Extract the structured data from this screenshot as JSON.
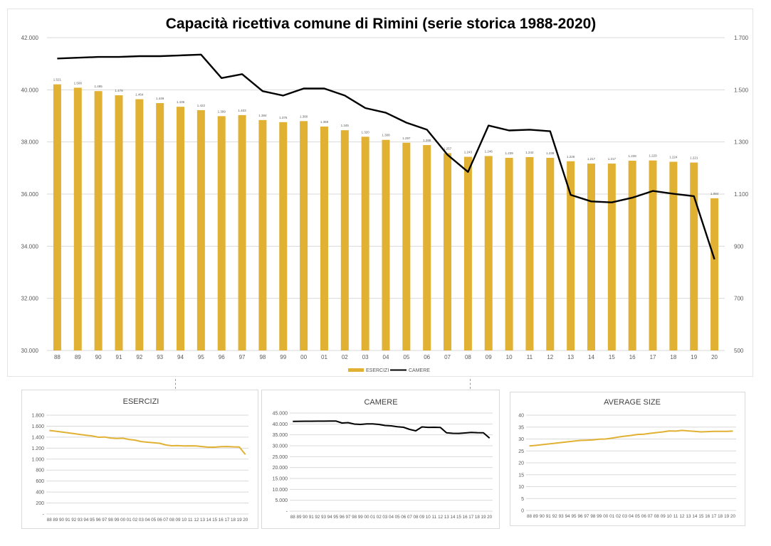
{
  "chart_data": [
    {
      "type": "bar+line",
      "title": "Capacità ricettiva comune di Rimini (serie storica 1988-2020)",
      "categories": [
        "88",
        "89",
        "90",
        "91",
        "92",
        "93",
        "94",
        "95",
        "96",
        "97",
        "98",
        "99",
        "00",
        "01",
        "02",
        "03",
        "04",
        "05",
        "06",
        "07",
        "08",
        "09",
        "10",
        "11",
        "12",
        "13",
        "14",
        "15",
        "16",
        "17",
        "18",
        "19",
        "20"
      ],
      "series": [
        {
          "name": "ESERCIZI",
          "type": "bar",
          "axis": "right",
          "color": "#E1B133",
          "values": [
            1521,
            1508,
            1495,
            1479,
            1464,
            1449,
            1435,
            1422,
            1399,
            1403,
            1384,
            1376,
            1380,
            1359,
            1345,
            1320,
            1308,
            1297,
            1288,
            1257,
            1243,
            1246,
            1239,
            1242,
            1239,
            1226,
            1217,
            1217,
            1228,
            1229,
            1224,
            1221,
            1084
          ],
          "labels": [
            "1.521",
            "1.508",
            "1.495",
            "1.479",
            "1.464",
            "1.449",
            "1.435",
            "1.422",
            "1.399",
            "1.403",
            "1.384",
            "1.376",
            "1.380",
            "1.359",
            "1.345",
            "1.320",
            "1.308",
            "1.297",
            "1.288",
            "1.257",
            "1.243",
            "1.246",
            "1.239",
            "1.242",
            "1.239",
            "1.226",
            "1.217",
            "1.217",
            "1.228",
            "1.229",
            "1.224",
            "1.221",
            "1.084"
          ]
        },
        {
          "name": "CAMERE",
          "type": "line",
          "axis": "left",
          "color": "#000000",
          "values": [
            41200,
            41230,
            41260,
            41260,
            41290,
            41290,
            41320,
            41350,
            40450,
            40600,
            39950,
            39780,
            40050,
            40050,
            39780,
            39300,
            39120,
            38740,
            38470,
            37510,
            36850,
            38630,
            38440,
            38470,
            38410,
            35970,
            35720,
            35680,
            35860,
            36120,
            36010,
            35920,
            33500
          ]
        }
      ],
      "ylim_left": [
        30000,
        42000
      ],
      "yticks_left": [
        "30.000",
        "32.000",
        "34.000",
        "36.000",
        "38.000",
        "40.000",
        "42.000"
      ],
      "ylim_right": [
        500,
        1700
      ],
      "yticks_right": [
        "500",
        "700",
        "900",
        "1.100",
        "1.300",
        "1.500",
        "1.700"
      ],
      "grid": true,
      "legend_position": "bottom"
    },
    {
      "type": "line",
      "title": "ESERCIZI",
      "color": "#E1B133",
      "categories": [
        "88",
        "89",
        "90",
        "91",
        "92",
        "93",
        "94",
        "95",
        "96",
        "97",
        "98",
        "99",
        "00",
        "01",
        "02",
        "03",
        "04",
        "05",
        "06",
        "07",
        "08",
        "09",
        "10",
        "11",
        "12",
        "13",
        "14",
        "15",
        "16",
        "17",
        "18",
        "19",
        "20"
      ],
      "values": [
        1521,
        1508,
        1495,
        1479,
        1464,
        1449,
        1435,
        1422,
        1399,
        1403,
        1384,
        1376,
        1380,
        1359,
        1345,
        1320,
        1308,
        1297,
        1288,
        1257,
        1243,
        1246,
        1239,
        1242,
        1239,
        1226,
        1217,
        1217,
        1228,
        1229,
        1224,
        1221,
        1084
      ],
      "ylim": [
        0,
        1800
      ],
      "yticks": [
        "-",
        "200",
        "400",
        "600",
        "800",
        "1.000",
        "1.200",
        "1.400",
        "1.600",
        "1.800"
      ]
    },
    {
      "type": "line",
      "title": "CAMERE",
      "color": "#000000",
      "categories": [
        "88",
        "89",
        "90",
        "91",
        "92",
        "93",
        "94",
        "95",
        "96",
        "97",
        "98",
        "99",
        "00",
        "01",
        "02",
        "03",
        "04",
        "05",
        "06",
        "07",
        "08",
        "09",
        "10",
        "11",
        "12",
        "13",
        "14",
        "15",
        "16",
        "17",
        "18",
        "19",
        "20"
      ],
      "values": [
        41200,
        41230,
        41260,
        41260,
        41290,
        41290,
        41320,
        41350,
        40450,
        40600,
        39950,
        39780,
        40050,
        40050,
        39780,
        39300,
        39120,
        38740,
        38470,
        37510,
        36850,
        38630,
        38440,
        38470,
        38410,
        35970,
        35720,
        35680,
        35860,
        36120,
        36010,
        35920,
        33500
      ],
      "ylim": [
        0,
        45000
      ],
      "yticks": [
        "-",
        "5.000",
        "10.000",
        "15.000",
        "20.000",
        "25.000",
        "30.000",
        "35.000",
        "40.000",
        "45.000"
      ]
    },
    {
      "type": "line",
      "title": "AVERAGE SIZE",
      "color": "#E1B133",
      "categories": [
        "88",
        "89",
        "90",
        "91",
        "92",
        "93",
        "94",
        "95",
        "96",
        "97",
        "98",
        "99",
        "00",
        "01",
        "02",
        "03",
        "04",
        "05",
        "06",
        "07",
        "08",
        "09",
        "10",
        "11",
        "12",
        "13",
        "14",
        "15",
        "16",
        "17",
        "18",
        "19",
        "20"
      ],
      "values": [
        27.1,
        27.3,
        27.6,
        27.9,
        28.2,
        28.5,
        28.8,
        29.1,
        29.4,
        29.5,
        29.6,
        29.9,
        30.0,
        30.4,
        30.8,
        31.2,
        31.5,
        31.9,
        32.0,
        32.4,
        32.7,
        33.0,
        33.4,
        33.3,
        33.6,
        33.4,
        33.2,
        33.0,
        33.1,
        33.2,
        33.2,
        33.2,
        33.3
      ],
      "ylim": [
        0,
        40
      ],
      "yticks": [
        "0",
        "5",
        "10",
        "15",
        "20",
        "25",
        "30",
        "35",
        "40"
      ]
    }
  ]
}
